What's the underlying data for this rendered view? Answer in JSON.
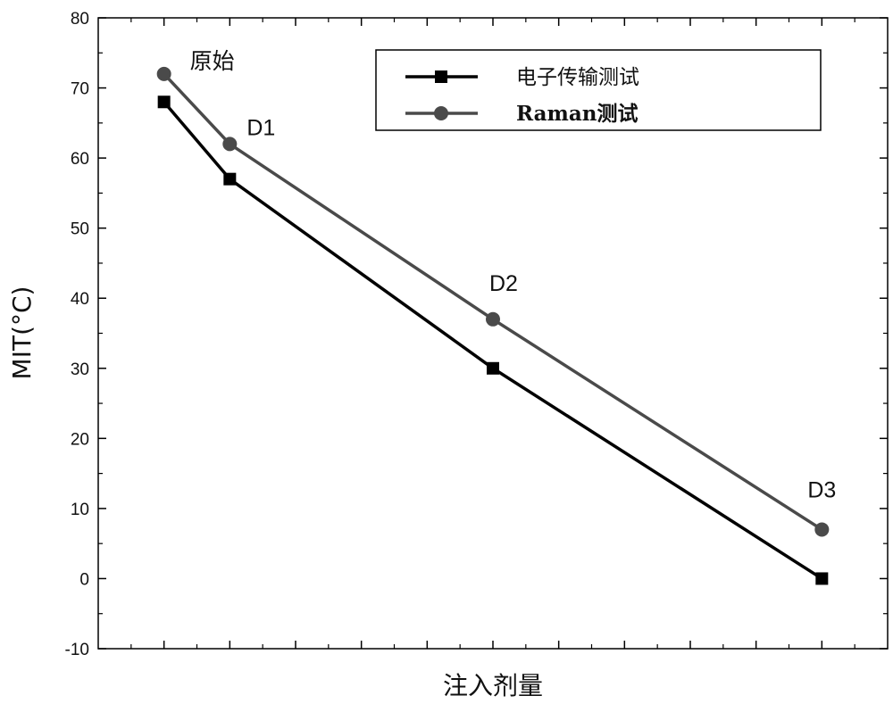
{
  "chart_data": {
    "type": "line",
    "xlabel": "注入剂量",
    "ylabel": "MIT(°C)",
    "ylim": [
      -10,
      80
    ],
    "yticks": [
      -10,
      0,
      10,
      20,
      30,
      40,
      50,
      60,
      70,
      80
    ],
    "x_ticks_labeled": false,
    "categories": [
      "原始",
      "D1",
      "D2",
      "D3"
    ],
    "x": [
      1,
      2,
      6,
      11
    ],
    "xlim": [
      0,
      12
    ],
    "series": [
      {
        "name": "电子传输测试",
        "marker": "square",
        "color": "#000000",
        "values": [
          68,
          57,
          30,
          0
        ]
      },
      {
        "name": "Raman测试",
        "marker": "circle",
        "color": "#4a4a4a",
        "values": [
          72,
          62,
          37,
          7
        ]
      }
    ],
    "annotations": [
      {
        "text": "原始",
        "x": 1,
        "y": 72
      },
      {
        "text": "D1",
        "x": 2,
        "y": 62
      },
      {
        "text": "D2",
        "x": 6,
        "y": 37
      },
      {
        "text": "D3",
        "x": 11,
        "y": 7
      }
    ],
    "legend": {
      "position": "top-right",
      "frame": true
    },
    "grid": false
  }
}
